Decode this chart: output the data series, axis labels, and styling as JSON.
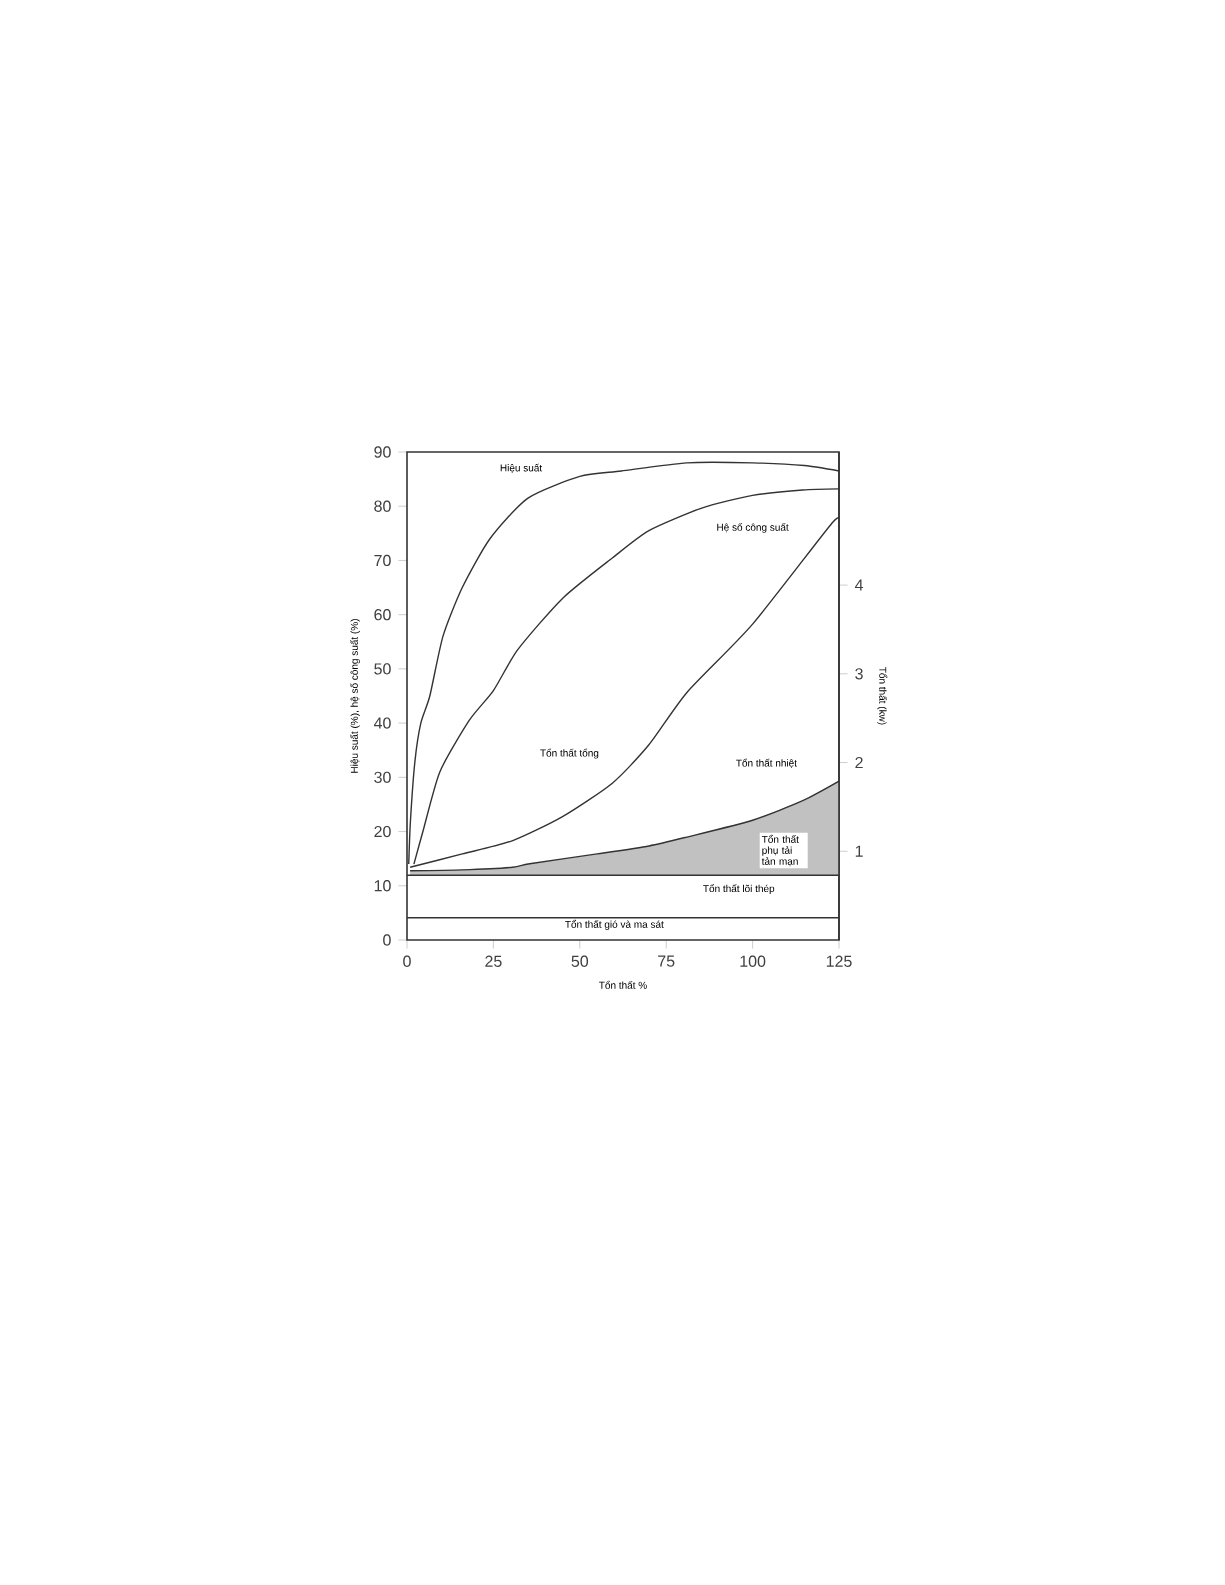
{
  "chart_data": {
    "type": "line",
    "xlabel": "Tổn thất %",
    "ylabel": "Hiệu suất (%), hệ số công suất (%)",
    "y2label": "Tổn thất (kw)",
    "xlim": [
      0,
      125
    ],
    "xticks": [
      0,
      25,
      50,
      75,
      100,
      125
    ],
    "ylim": [
      0,
      90
    ],
    "yticks": [
      0,
      10,
      20,
      30,
      40,
      50,
      60,
      70,
      80,
      90
    ],
    "y2lim": [
      0,
      5.5
    ],
    "y2ticks": [
      1,
      2,
      3,
      4
    ],
    "line_style": "solid",
    "series": [
      {
        "color": "#333333",
        "x": [
          0.5,
          1,
          2.3,
          4,
          6.6,
          10.4,
          16,
          24,
          35,
          50,
          62,
          81,
          100,
          115,
          125
        ],
        "values": [
          14,
          22,
          33,
          40,
          45,
          56,
          65,
          74,
          81.5,
          85.5,
          86.5,
          88,
          88,
          87.5,
          86.5
        ]
      },
      {
        "color": "#333333",
        "x": [
          2,
          4.6,
          9.5,
          18,
          25,
          32,
          45,
          59.5,
          70,
          85.5,
          100,
          114.5,
          125
        ],
        "values": [
          14,
          20,
          31,
          40.5,
          46,
          53.5,
          63,
          70.5,
          75.5,
          79.7,
          82,
          83,
          83.2
        ]
      },
      {
        "color": "#333333",
        "axis": "y2",
        "x": [
          0.9,
          16,
          30.6,
          45,
          59.5,
          70,
          81,
          100,
          123,
          125
        ],
        "values": [
          0.82,
          0.97,
          1.12,
          1.39,
          1.77,
          2.2,
          2.79,
          3.56,
          4.7,
          4.71
        ]
      },
      {
        "color": "#333333",
        "axis": "y2",
        "x": [
          0.9,
          16,
          30.6,
          35.5,
          55,
          70,
          81,
          100,
          114.5,
          125
        ],
        "values": [
          0.78,
          0.79,
          0.82,
          0.86,
          0.97,
          1.06,
          1.16,
          1.35,
          1.57,
          1.79
        ],
        "lower": [
          0.73,
          0.73,
          0.73,
          0.73,
          0.73,
          0.73,
          0.73,
          0.73,
          0.73,
          0.73
        ],
        "upper": [
          0.78,
          0.79,
          0.82,
          0.86,
          0.97,
          1.06,
          1.16,
          1.35,
          1.57,
          1.79
        ]
      },
      {
        "color": "#333333",
        "axis": "y2",
        "x": [
          0,
          125
        ],
        "values": [
          0.73,
          0.73
        ]
      },
      {
        "color": "#333333",
        "axis": "y2",
        "x": [
          0,
          125
        ],
        "values": [
          0.25,
          0.25
        ]
      }
    ],
    "annotations": [
      "Hiệu suất",
      "Hệ số công suất",
      "Tổn thất tổng",
      "Tổn thất nhiệt",
      "Tổn thất phụ tải tản mạn",
      "Tổn thất lõi thép",
      "Tổn thất gió và ma sát"
    ]
  }
}
